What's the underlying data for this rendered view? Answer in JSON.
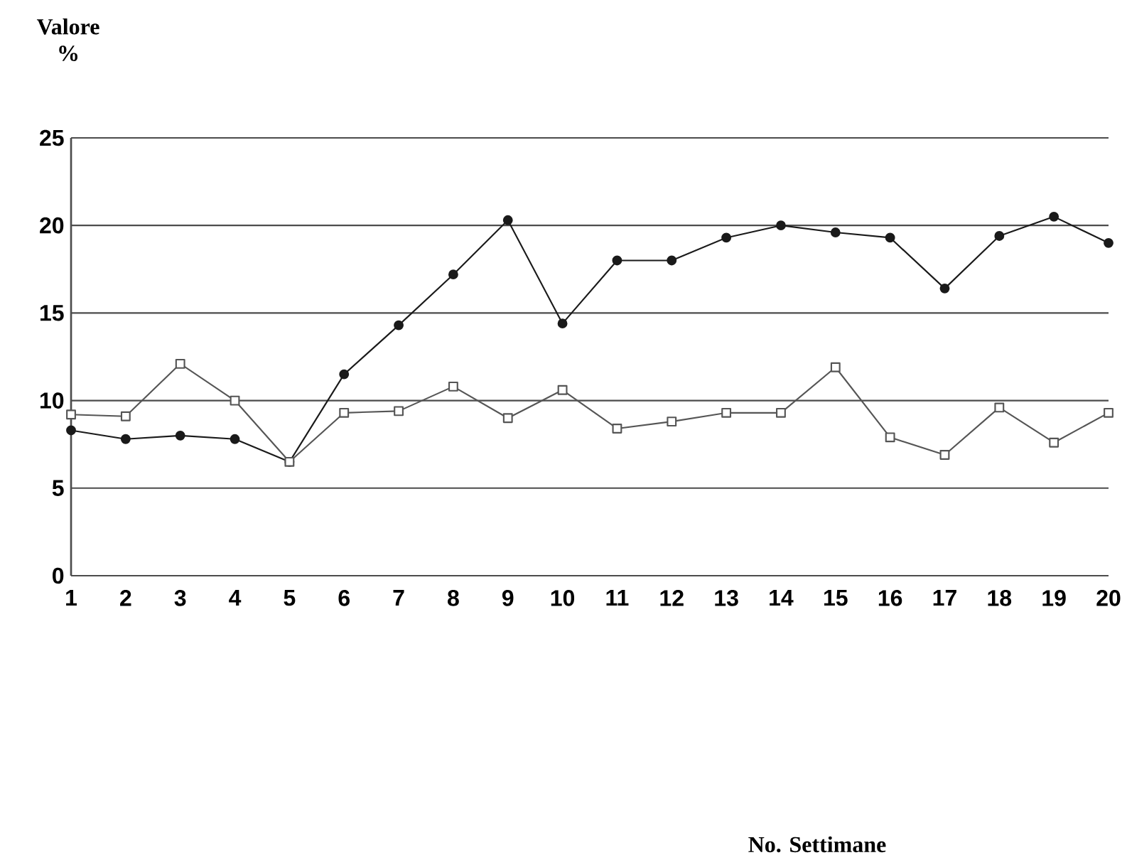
{
  "chart_data": {
    "type": "line",
    "ylabel": "Valore %",
    "annotations": [
      "No. Settimane"
    ],
    "x": [
      1,
      2,
      3,
      4,
      5,
      6,
      7,
      8,
      9,
      10,
      11,
      12,
      13,
      14,
      15,
      16,
      17,
      18,
      19,
      20
    ],
    "xlim": [
      1,
      20
    ],
    "xticks": [
      1,
      2,
      3,
      4,
      5,
      6,
      7,
      8,
      9,
      10,
      11,
      12,
      13,
      14,
      15,
      16,
      17,
      18,
      19,
      20
    ],
    "ylim": [
      0,
      25
    ],
    "yticks": [
      0,
      5,
      10,
      15,
      20,
      25
    ],
    "grid": "y",
    "series": [
      {
        "color": "#1a1a1a",
        "marker": "circle",
        "values": [
          8.3,
          7.8,
          8.0,
          7.8,
          6.5,
          11.5,
          14.3,
          17.2,
          20.3,
          14.4,
          18.0,
          18.0,
          19.3,
          20.0,
          19.6,
          19.3,
          16.4,
          19.4,
          20.5,
          19.0
        ]
      },
      {
        "color": "#555555",
        "marker": "square",
        "values": [
          9.2,
          9.1,
          12.1,
          10.0,
          6.5,
          9.3,
          9.4,
          10.8,
          9.0,
          10.6,
          8.4,
          8.8,
          9.3,
          9.3,
          11.9,
          7.9,
          6.9,
          9.6,
          7.6,
          9.3
        ]
      }
    ]
  }
}
